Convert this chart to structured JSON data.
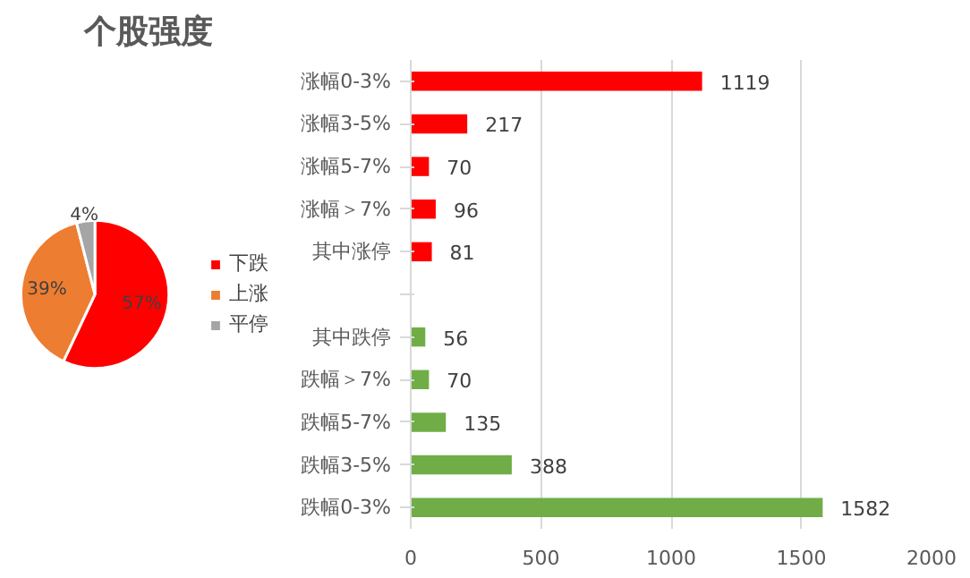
{
  "chart_data": [
    {
      "type": "pie",
      "title": "个股强度",
      "categories": [
        "下跌",
        "上涨",
        "平停"
      ],
      "values": [
        57,
        39,
        4
      ],
      "colors": [
        "#ff0000",
        "#ed7d31",
        "#a5a5a5"
      ],
      "value_labels": [
        "57%",
        "39%",
        "4%"
      ],
      "legend": "right"
    },
    {
      "type": "bar",
      "orientation": "horizontal",
      "categories": [
        "涨幅0-3%",
        "涨幅3-5%",
        "涨幅5-7%",
        "涨幅＞7%",
        "其中涨停",
        null,
        "其中跌停",
        "跌幅＞7%",
        "跌幅5-7%",
        "跌幅3-5%",
        "跌幅0-3%"
      ],
      "values": [
        1119,
        217,
        70,
        96,
        81,
        null,
        56,
        70,
        135,
        388,
        1582
      ],
      "colors": [
        "#ff0000",
        "#ff0000",
        "#ff0000",
        "#ff0000",
        "#ff0000",
        null,
        "#70ad47",
        "#70ad47",
        "#70ad47",
        "#70ad47",
        "#70ad47"
      ],
      "xlim": [
        0,
        2000
      ],
      "xticks": [
        0,
        500,
        1000,
        1500,
        2000
      ],
      "grid": "x",
      "data_labels": true
    }
  ]
}
